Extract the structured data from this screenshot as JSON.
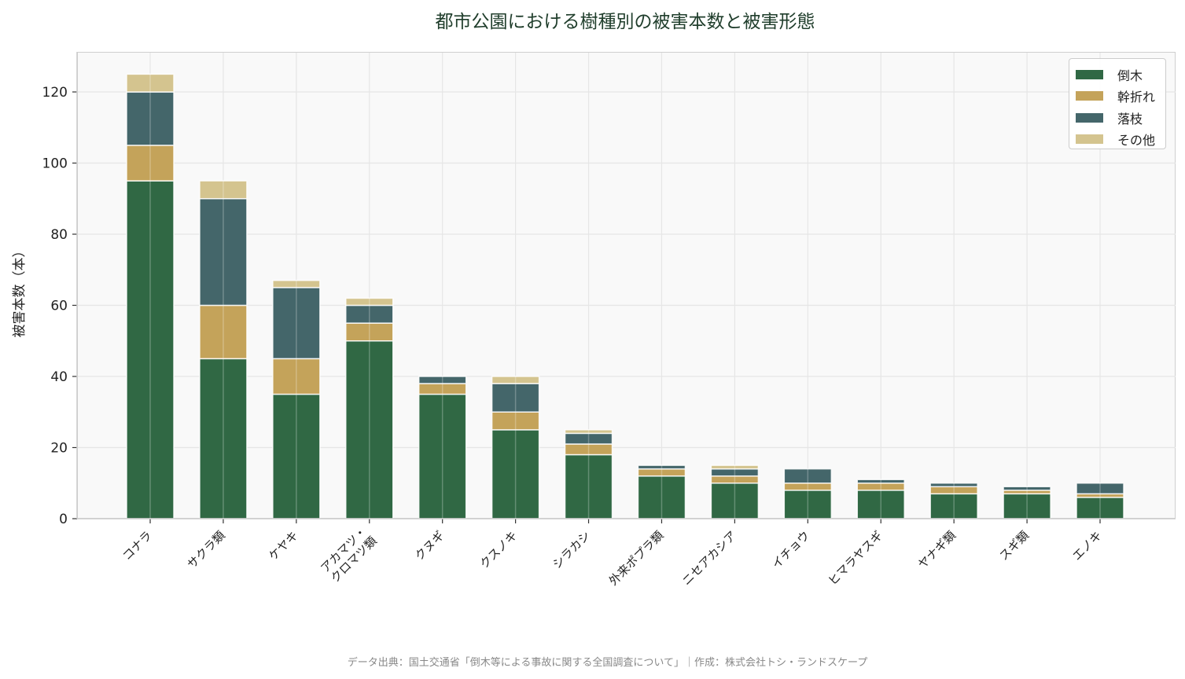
{
  "chart_data": {
    "type": "bar",
    "stacked": true,
    "title": "都市公園における樹種別の被害本数と被害形態",
    "xlabel": "",
    "ylabel": "被害本数（本）",
    "ylim": [
      0,
      131
    ],
    "yticks": [
      0,
      20,
      40,
      60,
      80,
      100,
      120
    ],
    "grid": true,
    "legend_position": "upper right",
    "categories": [
      "コナラ",
      "サクラ類",
      "ケヤキ",
      "アカマツ・\nクロマツ類",
      "クヌギ",
      "クスノキ",
      "シラカシ",
      "外来ポプラ類",
      "ニセアカシア",
      "イチョウ",
      "ヒマラヤスギ",
      "ヤナギ類",
      "スギ類",
      "エノキ"
    ],
    "series": [
      {
        "name": "倒木",
        "color": "#306844",
        "values": [
          95,
          45,
          35,
          50,
          35,
          25,
          18,
          12,
          10,
          8,
          8,
          7,
          7,
          6
        ]
      },
      {
        "name": "幹折れ",
        "color": "#c4a35a",
        "values": [
          10,
          15,
          10,
          5,
          3,
          5,
          3,
          2,
          2,
          2,
          2,
          2,
          1,
          1
        ]
      },
      {
        "name": "落枝",
        "color": "#44666a",
        "values": [
          15,
          30,
          20,
          5,
          2,
          8,
          3,
          1,
          2,
          4,
          1,
          1,
          1,
          3
        ]
      },
      {
        "name": "その他",
        "color": "#d4c48f",
        "values": [
          5,
          5,
          2,
          2,
          0,
          2,
          1,
          0,
          1,
          0,
          0,
          0,
          0,
          0
        ]
      }
    ]
  },
  "footnote": "データ出典：国土交通省「倒木等による事故に関する全国調査について」｜作成：株式会社トシ・ランドスケープ"
}
